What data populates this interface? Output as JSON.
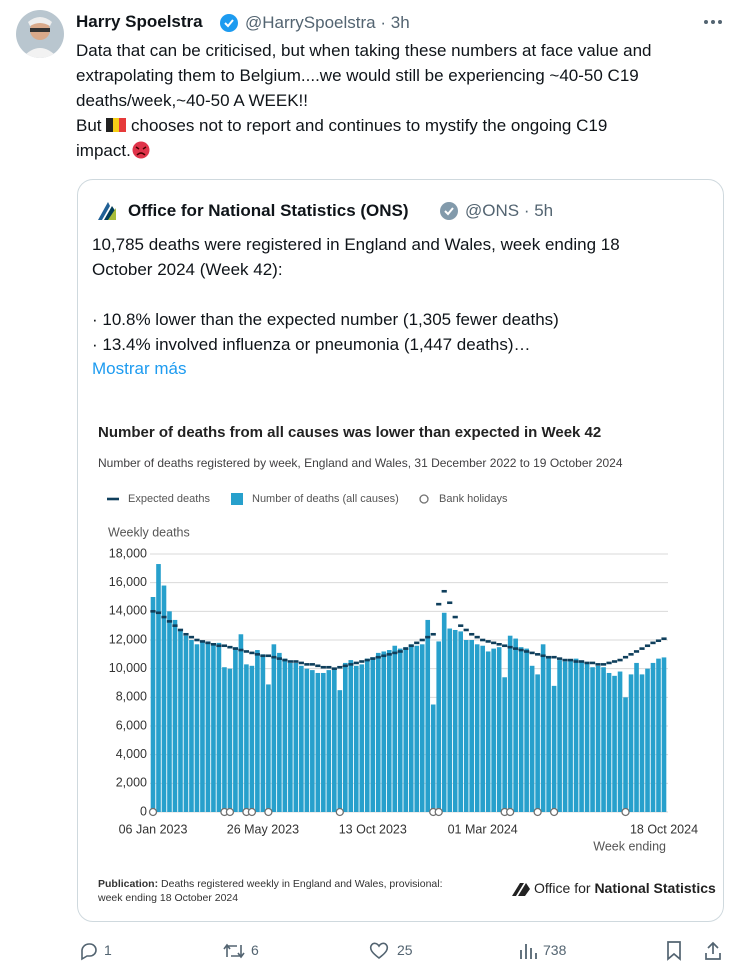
{
  "tweet": {
    "author": "Harry Spoelstra",
    "handle": "@HarrySpoelstra",
    "time": "3h",
    "text_lines": [
      "Data that can be criticised, but when taking these numbers at face value and",
      "extrapolating them to Belgium....we would still be experiencing ~40-50 C19",
      "deaths/week,~40-50 A WEEK!!"
    ],
    "but_text": "But",
    "line_4": "chooses not to report and continues to mystify the ongoing C19",
    "line_5": "impact.",
    "quote": {
      "author": "Office for National Statistics (ONS)",
      "handle": "@ONS",
      "time": "5h",
      "text_lines": [
        "10,785 deaths were registered in England and Wales, week ending 18",
        "October 2024 (Week 42):",
        "· 10.8% lower than the expected number (1,305 fewer deaths)",
        "· 13.4% involved influenza or pneumonia (1,447 deaths)…"
      ],
      "show_more": "Mostrar más"
    },
    "actions": {
      "replies": "1",
      "reposts": "6",
      "likes": "25",
      "views": "738"
    }
  },
  "chart_data": {
    "type": "bar",
    "title": "Number of deaths from all causes was lower than expected in Week 42",
    "subtitle": "Number of deaths registered by week, England and Wales, 31 December 2022 to 19 October 2024",
    "y_label": "Weekly deaths",
    "x_label": "Week ending",
    "source_label": "Publication:",
    "source_lines": [
      "Deaths registered weekly in England and Wales, provisional:",
      "week ending 18 October 2024"
    ],
    "logo_text": [
      "Office for",
      "National Statistics"
    ],
    "categories": [
      "06 Jan 2023",
      null,
      null,
      null,
      null,
      null,
      null,
      null,
      null,
      null,
      null,
      null,
      null,
      null,
      null,
      null,
      null,
      null,
      null,
      null,
      "26 May 2023",
      null,
      null,
      null,
      null,
      null,
      null,
      null,
      null,
      null,
      null,
      null,
      null,
      null,
      null,
      null,
      null,
      null,
      null,
      null,
      "13 Oct 2023",
      null,
      null,
      null,
      null,
      null,
      null,
      null,
      null,
      null,
      null,
      null,
      null,
      null,
      null,
      null,
      null,
      null,
      null,
      null,
      "01 Mar 2024",
      null,
      null,
      null,
      null,
      null,
      null,
      null,
      null,
      null,
      null,
      null,
      null,
      null,
      null,
      null,
      null,
      null,
      null,
      null,
      null,
      null,
      null,
      null,
      null,
      null,
      null,
      null,
      null,
      null,
      null,
      null,
      null,
      "18 Oct 2024"
    ],
    "ylim": [
      0,
      18000
    ],
    "yticks": [
      0,
      {
        "value": 2000,
        "label": "2,000"
      },
      {
        "value": 4000,
        "label": "4,000"
      },
      {
        "value": 6000,
        "label": "6,000"
      },
      {
        "value": 8000,
        "label": "8,000"
      },
      {
        "value": 10000,
        "label": "10,000"
      },
      {
        "value": 12000,
        "label": "12,000"
      },
      {
        "value": 14000,
        "label": "14,000"
      },
      {
        "value": 16000,
        "label": "16,000"
      },
      {
        "value": 18000,
        "label": "18,000"
      }
    ],
    "grid": true,
    "series": [
      {
        "name": "Expected deaths",
        "style": "dash",
        "color": "#0f3f5c",
        "values": [
          14000,
          13900,
          13600,
          13300,
          13000,
          12700,
          12400,
          12200,
          12000,
          11900,
          11800,
          11700,
          11600,
          11600,
          11500,
          11400,
          11300,
          11200,
          11100,
          11000,
          10900,
          10900,
          10800,
          10700,
          10600,
          10500,
          10500,
          10400,
          10300,
          10300,
          10200,
          10100,
          10100,
          10000,
          10100,
          10200,
          10300,
          10400,
          10500,
          10600,
          10700,
          10800,
          10900,
          11000,
          11100,
          11200,
          11400,
          11600,
          11800,
          12000,
          12200,
          12400,
          14500,
          15400,
          14600,
          13600,
          13000,
          12700,
          12400,
          12200,
          12000,
          11900,
          11800,
          11700,
          11600,
          11500,
          11400,
          11300,
          11200,
          11100,
          11000,
          10900,
          10800,
          10800,
          10700,
          10600,
          10600,
          10500,
          10500,
          10400,
          10400,
          10300,
          10300,
          10400,
          10500,
          10600,
          10800,
          11000,
          11200,
          11400,
          11600,
          11800,
          11950,
          12090
        ]
      },
      {
        "name": "Number of deaths (all causes)",
        "style": "bar",
        "color": "#27a0cc",
        "values": [
          15000,
          17300,
          15800,
          14000,
          13400,
          12700,
          12300,
          12000,
          11700,
          11900,
          11900,
          11700,
          11800,
          10100,
          10000,
          11500,
          12400,
          10300,
          10200,
          11300,
          11000,
          8900,
          11700,
          11100,
          10700,
          10400,
          10400,
          10200,
          10000,
          9900,
          9700,
          9700,
          9900,
          10000,
          8500,
          10400,
          10600,
          10200,
          10300,
          10700,
          10800,
          11100,
          11200,
          11300,
          11600,
          11400,
          11500,
          11700,
          11600,
          11700,
          13400,
          7500,
          11900,
          13900,
          12800,
          12700,
          12600,
          12000,
          12000,
          11700,
          11600,
          11200,
          11400,
          11500,
          9400,
          12300,
          12100,
          11500,
          11400,
          10200,
          9600,
          11700,
          10800,
          8800,
          10600,
          10500,
          10600,
          10700,
          10500,
          10400,
          10100,
          10200,
          10100,
          9700,
          9500,
          9800,
          8000,
          9600,
          10400,
          9600,
          10000,
          10400,
          10700,
          10785
        ]
      },
      {
        "name": "Bank holidays",
        "style": "circle",
        "color": "#707070",
        "values": [
          0,
          null,
          null,
          null,
          null,
          null,
          null,
          null,
          null,
          null,
          null,
          null,
          null,
          0,
          0,
          null,
          null,
          0,
          0,
          null,
          null,
          0,
          null,
          null,
          null,
          null,
          null,
          null,
          null,
          null,
          null,
          null,
          null,
          null,
          0,
          null,
          null,
          null,
          null,
          null,
          null,
          null,
          null,
          null,
          null,
          null,
          null,
          null,
          null,
          null,
          null,
          0,
          0,
          null,
          null,
          null,
          null,
          null,
          null,
          null,
          null,
          null,
          null,
          null,
          0,
          0,
          null,
          null,
          null,
          null,
          0,
          null,
          null,
          0,
          null,
          null,
          null,
          null,
          null,
          null,
          null,
          null,
          null,
          null,
          null,
          null,
          0,
          null,
          null,
          null,
          null,
          null,
          null,
          null
        ]
      }
    ]
  }
}
